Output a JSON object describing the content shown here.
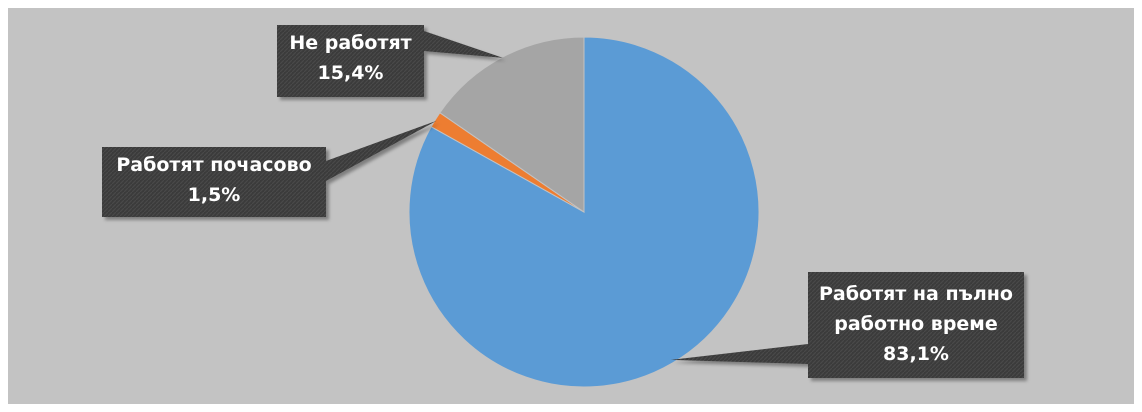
{
  "chart_data": {
    "type": "pie",
    "slices": [
      {
        "label_lines": [
          "Работят на пълно",
          "работно време"
        ],
        "value": 83.1,
        "value_label": "83,1%",
        "color": "#5b9bd5"
      },
      {
        "label_lines": [
          "Работят почасово"
        ],
        "value": 1.5,
        "value_label": "1,5%",
        "color": "#ed7d31"
      },
      {
        "label_lines": [
          "Не работят"
        ],
        "value": 15.4,
        "value_label": "15,4%",
        "color": "#a5a5a5"
      }
    ],
    "legend": "none",
    "colors": {
      "plot_background": "#c3c3c3",
      "callout_background": "#3b3b3b",
      "callout_text": "#ffffff"
    }
  }
}
